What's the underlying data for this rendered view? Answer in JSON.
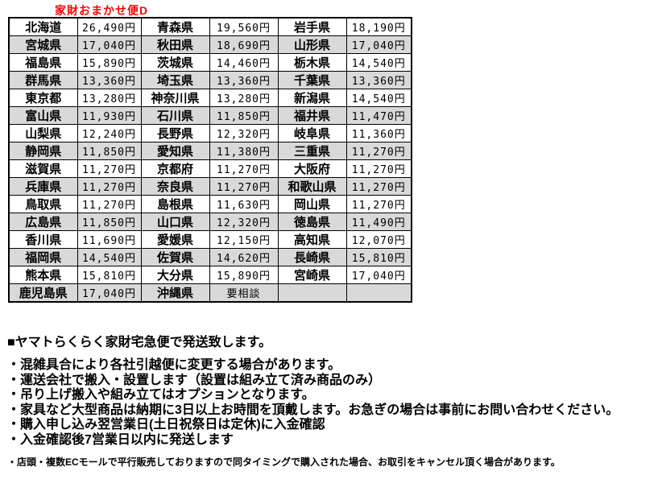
{
  "title": "家財おまかせ便D",
  "colors": {
    "accent_red": "#FF0000",
    "row_stripe": "#D9D9D9",
    "border": "#000000",
    "text": "#000000",
    "background": "#FFFFFF"
  },
  "table": {
    "columns": [
      "prefecture",
      "price",
      "prefecture",
      "price",
      "prefecture",
      "price"
    ],
    "rows": [
      [
        "北海道",
        "26,490円",
        "青森県",
        "19,560円",
        "岩手県",
        "18,190円"
      ],
      [
        "宮城県",
        "17,040円",
        "秋田県",
        "18,690円",
        "山形県",
        "17,040円"
      ],
      [
        "福島県",
        "15,890円",
        "茨城県",
        "14,460円",
        "栃木県",
        "14,540円"
      ],
      [
        "群馬県",
        "13,360円",
        "埼玉県",
        "13,360円",
        "千葉県",
        "13,360円"
      ],
      [
        "東京都",
        "13,280円",
        "神奈川県",
        "13,280円",
        "新潟県",
        "14,540円"
      ],
      [
        "富山県",
        "11,930円",
        "石川県",
        "11,850円",
        "福井県",
        "11,470円"
      ],
      [
        "山梨県",
        "12,240円",
        "長野県",
        "12,320円",
        "岐阜県",
        "11,360円"
      ],
      [
        "静岡県",
        "11,850円",
        "愛知県",
        "11,380円",
        "三重県",
        "11,270円"
      ],
      [
        "滋賀県",
        "11,270円",
        "京都府",
        "11,270円",
        "大阪府",
        "11,270円"
      ],
      [
        "兵庫県",
        "11,270円",
        "奈良県",
        "11,270円",
        "和歌山県",
        "11,270円"
      ],
      [
        "鳥取県",
        "11,270円",
        "島根県",
        "11,630円",
        "岡山県",
        "11,270円"
      ],
      [
        "広島県",
        "11,850円",
        "山口県",
        "12,320円",
        "徳島県",
        "11,490円"
      ],
      [
        "香川県",
        "11,690円",
        "愛媛県",
        "12,150円",
        "高知県",
        "12,070円"
      ],
      [
        "福岡県",
        "14,540円",
        "佐賀県",
        "14,620円",
        "長崎県",
        "15,810円"
      ],
      [
        "熊本県",
        "15,810円",
        "大分県",
        "15,890円",
        "宮崎県",
        "17,040円"
      ],
      [
        "鹿児島県",
        "17,040円",
        "沖縄県",
        "要相談",
        "",
        ""
      ]
    ]
  },
  "notes": {
    "heading": "■ヤマトらくらく家財宅急便で発送致します。",
    "bullets": [
      "・混雑具合により各社引越便に変更する場合があります。",
      "・運送会社で搬入・設置します（設置は組み立て済み商品のみ）",
      "・吊り上げ搬入や組み立てはオプションとなります。",
      "・家具など大型商品は納期に3日以上お時間を頂戴します。お急ぎの場合は事前にお問い合わせください。",
      "・購入申し込み翌営業日(土日祝祭日は定休)に入金確認",
      "・入金確認後7営業日以内に発送します"
    ],
    "fine_print": "・店頭・複数ECモールで平行販売しておりますので同タイミングで購入された場合、お取引をキャンセル頂く場合があります。"
  }
}
